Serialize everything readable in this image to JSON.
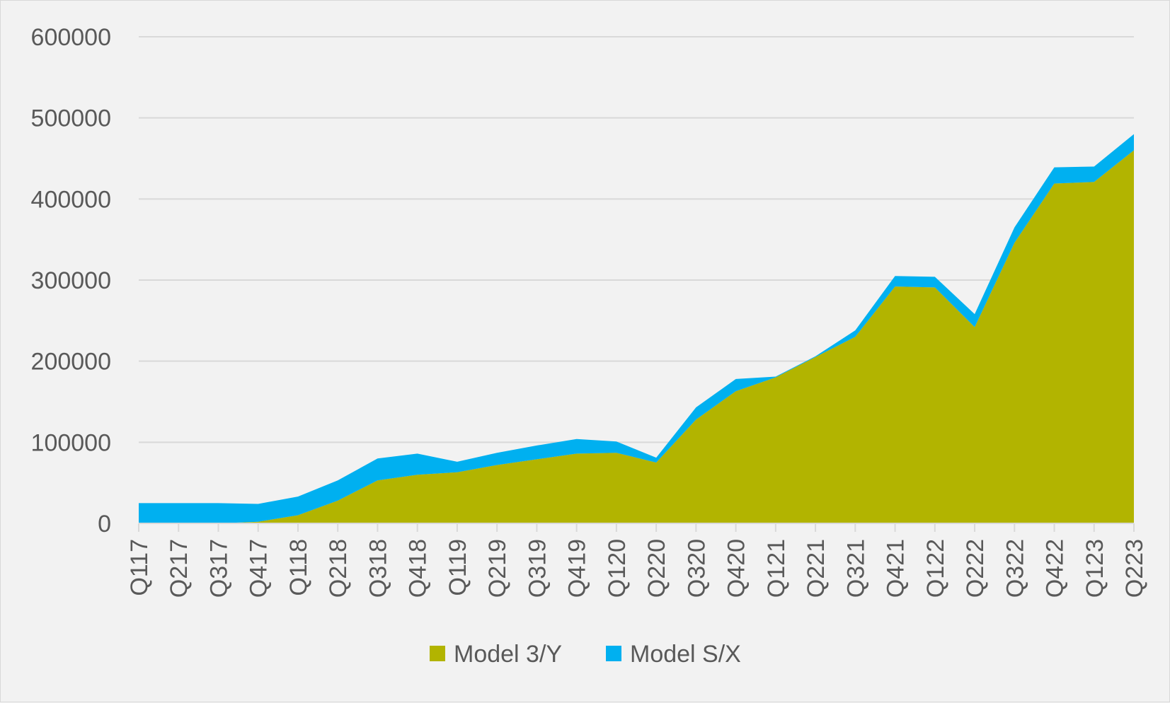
{
  "chart_data": {
    "type": "area",
    "stacked": true,
    "categories": [
      "Q117",
      "Q217",
      "Q317",
      "Q417",
      "Q118",
      "Q218",
      "Q318",
      "Q418",
      "Q119",
      "Q219",
      "Q319",
      "Q419",
      "Q120",
      "Q220",
      "Q320",
      "Q420",
      "Q121",
      "Q221",
      "Q321",
      "Q421",
      "Q122",
      "Q222",
      "Q322",
      "Q422",
      "Q123",
      "Q223"
    ],
    "series": [
      {
        "name": "Model 3/Y",
        "color": "#b2b400",
        "values": [
          0,
          0,
          0,
          2000,
          10000,
          28000,
          53000,
          60000,
          63000,
          72000,
          79000,
          86000,
          87000,
          75000,
          128000,
          163000,
          180000,
          205000,
          230000,
          292000,
          291000,
          242000,
          346000,
          419000,
          421000,
          460000
        ]
      },
      {
        "name": "Model S/X",
        "color": "#00b0f0",
        "values": [
          25000,
          25000,
          25000,
          22000,
          23000,
          25000,
          27000,
          26000,
          13000,
          15000,
          17000,
          18000,
          14000,
          6000,
          15000,
          15000,
          1000,
          1000,
          8000,
          13000,
          13000,
          16000,
          19000,
          20000,
          19000,
          20000
        ]
      }
    ],
    "ylim": [
      0,
      600000
    ],
    "yticks": [
      "0",
      "100000",
      "200000",
      "300000",
      "400000",
      "500000",
      "600000"
    ],
    "grid": true,
    "legend": "bottom"
  }
}
